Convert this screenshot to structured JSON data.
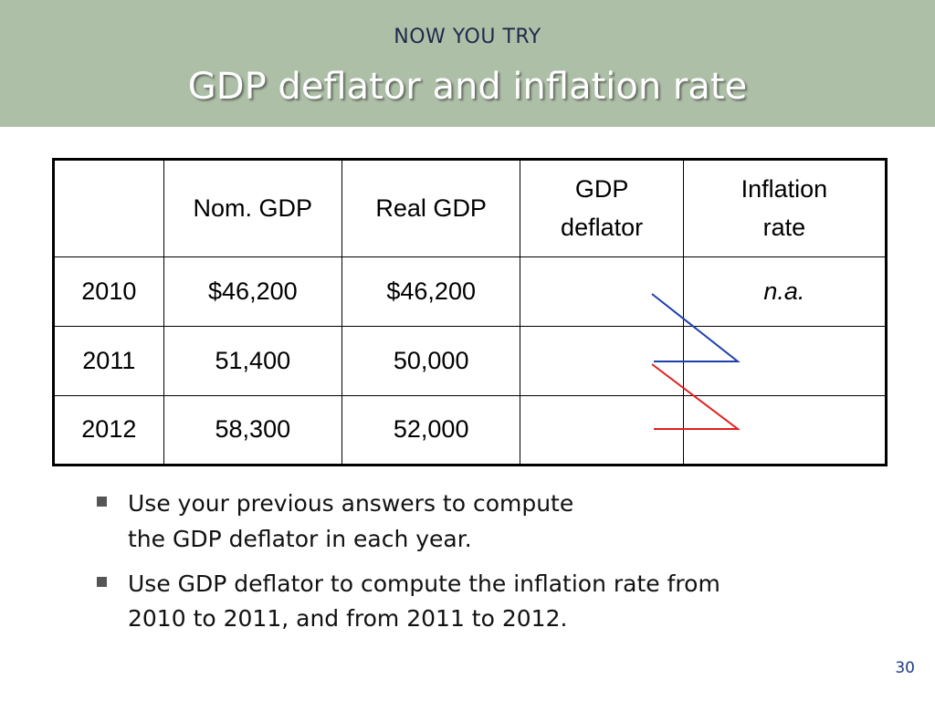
{
  "header": {
    "kicker": "NOW YOU TRY",
    "title": "GDP deflator and inflation rate"
  },
  "table": {
    "header": {
      "year": "",
      "nominal_gdp": "Nom. GDP",
      "real_gdp": "Real GDP",
      "gdp_deflator": [
        "GDP",
        "deflator"
      ],
      "inflation_rate": [
        "Inflation",
        "rate"
      ]
    },
    "rows": [
      {
        "year": "2010",
        "nominal_gdp": "$46,200",
        "real_gdp": "$46,200",
        "gdp_deflator": "",
        "inflation_rate": "n.a."
      },
      {
        "year": "2011",
        "nominal_gdp": "51,400",
        "real_gdp": "50,000",
        "gdp_deflator": "",
        "inflation_rate": ""
      },
      {
        "year": "2012",
        "nominal_gdp": "58,300",
        "real_gdp": "52,000",
        "gdp_deflator": "",
        "inflation_rate": ""
      }
    ]
  },
  "annotations": {
    "arrow_2010_2011_color": "#1f3fae",
    "arrow_2011_2012_color": "#e02020"
  },
  "colors": {
    "header_band": "#aebfa8",
    "kicker_text": "#1f2a4a",
    "page_number": "#1f3b8a"
  },
  "bullets": [
    [
      "Use your previous answers to compute",
      "the GDP deflator in each year."
    ],
    [
      "Use GDP deflator to compute the inflation rate from",
      "2010 to 2011, and from 2011 to 2012."
    ]
  ],
  "page_number": "30"
}
